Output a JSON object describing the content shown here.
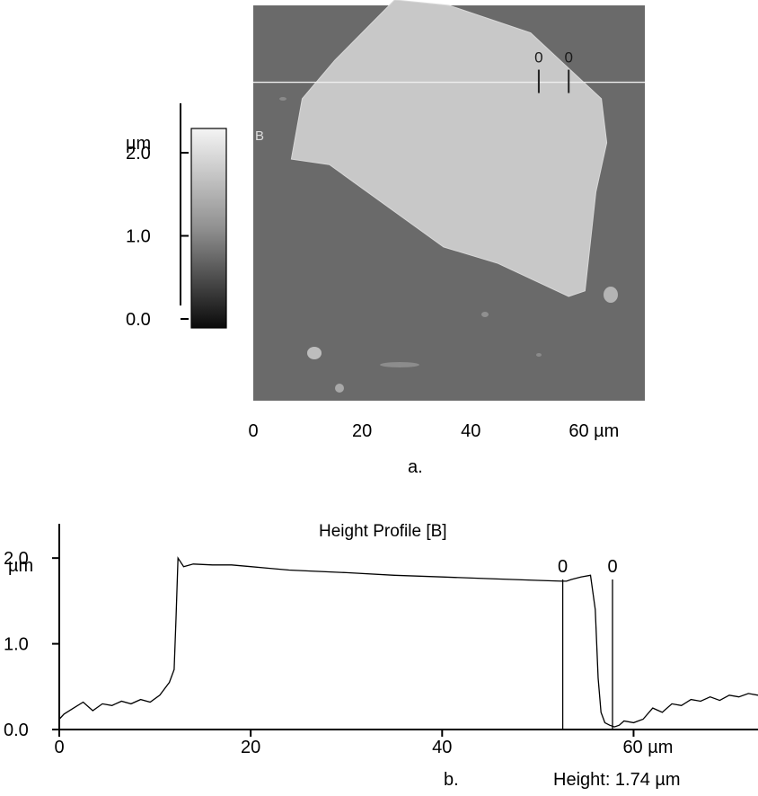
{
  "chart_data": [
    {
      "type": "heatmap",
      "panel_label": "a.",
      "description_mark": "B",
      "x_ticks": [
        "0",
        "20",
        "40",
        "60 µm"
      ],
      "xlim": [
        0,
        72
      ],
      "ylim": [
        0,
        72
      ],
      "colorbar": {
        "unit": "µm",
        "ticks": [
          "2.0",
          "1.0",
          "0.0"
        ],
        "tick_values": [
          2.0,
          1.0,
          0.0
        ],
        "range": [
          0.0,
          2.4
        ]
      },
      "profile_line_y_um": 58,
      "cursors": [
        {
          "label": "0",
          "x": 52.5
        },
        {
          "label": "0",
          "x": 58
        }
      ],
      "flake_outline_um": [
        [
          26,
          73
        ],
        [
          36,
          72
        ],
        [
          51,
          67
        ],
        [
          64,
          55
        ],
        [
          65,
          47
        ],
        [
          63,
          38
        ],
        [
          61,
          20
        ],
        [
          58,
          19
        ],
        [
          45,
          25
        ],
        [
          35,
          28
        ],
        [
          21,
          38
        ],
        [
          14,
          43
        ],
        [
          7,
          44
        ],
        [
          9,
          55
        ],
        [
          15,
          62
        ],
        [
          21,
          68
        ]
      ],
      "colors": {
        "background": "#6a6a6a",
        "flake": "#c8c8c8",
        "line": "#f0f0f0"
      }
    },
    {
      "type": "line",
      "title": "Height Profile [B]",
      "panel_label": "b.",
      "ylabel": "µm",
      "y_ticks": [
        "2.0",
        "1.0",
        "0.0"
      ],
      "x_ticks": [
        "0",
        "20",
        "40",
        "60 µm"
      ],
      "xlim": [
        0,
        73
      ],
      "ylim": [
        0,
        2.4
      ],
      "annotation": "Height: 1.74 µm",
      "cursors": [
        {
          "label": "0",
          "x": 52.6
        },
        {
          "label": "0",
          "x": 57.8
        }
      ],
      "x": [
        0,
        0.5,
        1.5,
        2.5,
        3.5,
        4.5,
        5.5,
        6.5,
        7.5,
        8.5,
        9.5,
        10.5,
        11.5,
        12.0,
        12.2,
        12.4,
        13,
        14,
        16,
        18,
        20,
        22,
        24,
        26,
        30,
        35,
        40,
        45,
        50,
        52.5,
        53,
        53.5,
        54.5,
        55.5,
        56,
        56.3,
        56.6,
        57,
        57.5,
        58,
        58.5,
        59,
        60,
        61,
        62,
        63,
        64,
        65,
        66,
        67,
        68,
        69,
        70,
        71,
        72,
        73
      ],
      "y": [
        0.12,
        0.18,
        0.25,
        0.32,
        0.22,
        0.3,
        0.28,
        0.33,
        0.3,
        0.35,
        0.32,
        0.4,
        0.55,
        0.7,
        1.3,
        2.0,
        1.9,
        1.93,
        1.92,
        1.92,
        1.9,
        1.88,
        1.86,
        1.85,
        1.83,
        1.8,
        1.78,
        1.76,
        1.74,
        1.73,
        1.73,
        1.75,
        1.78,
        1.8,
        1.4,
        0.6,
        0.2,
        0.08,
        0.05,
        0.03,
        0.05,
        0.1,
        0.08,
        0.12,
        0.25,
        0.2,
        0.3,
        0.28,
        0.35,
        0.33,
        0.38,
        0.34,
        0.4,
        0.38,
        0.42,
        0.4
      ]
    }
  ]
}
